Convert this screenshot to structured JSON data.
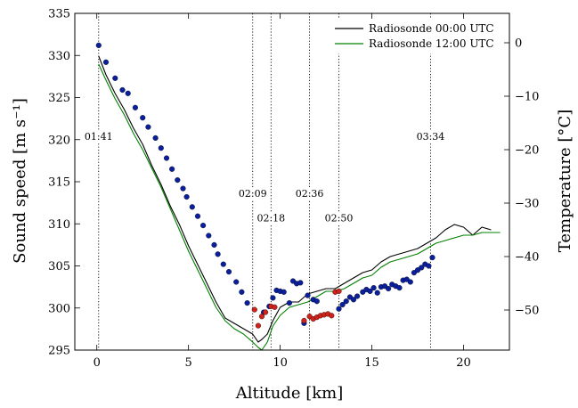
{
  "chart_data": {
    "type": "scatter",
    "xlabel": "Altitude [km]",
    "ylabel": "Sound speed [m s⁻¹]",
    "y2label": "Temperature [°C]",
    "xlim": [
      -1.2,
      22.5
    ],
    "ylim": [
      295,
      335
    ],
    "y2lim": [
      -57.5,
      5.5
    ],
    "x_ticks": [
      0,
      5,
      10,
      15,
      20
    ],
    "y_ticks": [
      295,
      300,
      305,
      310,
      315,
      320,
      325,
      330,
      335
    ],
    "y2_ticks": [
      0,
      -10,
      -20,
      -30,
      -40,
      -50
    ],
    "grid": false,
    "legend": {
      "position": "top-right",
      "entries": [
        {
          "label": "Radiosonde 00:00 UTC",
          "color": "#000000"
        },
        {
          "label": "Radiosonde 12:00 UTC",
          "color": "#008000"
        }
      ]
    },
    "time_markers": [
      {
        "x": 0.1,
        "label": "01:41",
        "label_y": 320.0
      },
      {
        "x": 8.5,
        "label": "02:09",
        "label_y": 313.2
      },
      {
        "x": 9.5,
        "label": "02:18",
        "label_y": 310.3
      },
      {
        "x": 11.6,
        "label": "02:36",
        "label_y": 313.2
      },
      {
        "x": 13.2,
        "label": "02:50",
        "label_y": 310.3
      },
      {
        "x": 18.2,
        "label": "03:34",
        "label_y": 320.0
      }
    ],
    "series": [
      {
        "name": "Radiosonde 00:00 UTC",
        "kind": "line",
        "axis": "temperature",
        "color": "#000000",
        "x": [
          0.1,
          0.5,
          1,
          1.5,
          2,
          2.5,
          3,
          3.5,
          4,
          4.5,
          5,
          5.5,
          6,
          6.5,
          7,
          7.5,
          8,
          8.5,
          8.8,
          9,
          9.3,
          9.6,
          10,
          10.5,
          11,
          11.5,
          12,
          12.5,
          13,
          13.5,
          14,
          14.5,
          15,
          15.5,
          16,
          16.5,
          17,
          17.5,
          18,
          18.5,
          19,
          19.5,
          20,
          20.5,
          21,
          21.5
        ],
        "y": [
          -2.5,
          -6,
          -9.5,
          -12.5,
          -16,
          -19,
          -23,
          -26.5,
          -30.5,
          -34,
          -38,
          -41.5,
          -45,
          -48.5,
          -51.5,
          -52.5,
          -53.5,
          -54.5,
          -56,
          -55.5,
          -54.5,
          -52,
          -49.5,
          -48.5,
          -48.5,
          -47,
          -46.5,
          -46,
          -46,
          -45,
          -44,
          -43,
          -42.5,
          -41,
          -40,
          -39.5,
          -39,
          -38.5,
          -37.5,
          -36.5,
          -35,
          -34,
          -34.5,
          -36,
          -34.5,
          -35
        ]
      },
      {
        "name": "Radiosonde 12:00 UTC",
        "kind": "line",
        "axis": "temperature",
        "color": "#008000",
        "x": [
          0.1,
          0.5,
          1,
          1.5,
          2,
          2.5,
          3,
          3.5,
          4,
          4.5,
          5,
          5.5,
          6,
          6.5,
          7,
          7.5,
          8,
          8.5,
          8.8,
          9,
          9.3,
          9.6,
          10,
          10.5,
          11,
          11.5,
          12,
          12.5,
          13,
          13.5,
          14,
          14.5,
          15,
          15.5,
          16,
          16.5,
          17,
          17.5,
          18,
          18.5,
          19,
          19.5,
          20,
          20.5,
          21,
          21.5,
          22
        ],
        "y": [
          -4,
          -7,
          -10.5,
          -13.5,
          -17,
          -20,
          -23.5,
          -27,
          -31,
          -35,
          -39,
          -42.5,
          -46,
          -49.5,
          -52,
          -53.5,
          -54.5,
          -56,
          -57,
          -57.5,
          -56,
          -53,
          -51,
          -49.5,
          -49,
          -48.5,
          -47.5,
          -46.5,
          -46.5,
          -46,
          -45,
          -44,
          -43.5,
          -42,
          -41,
          -40.5,
          -40,
          -39.5,
          -38.5,
          -37.5,
          -37,
          -36.5,
          -36,
          -36,
          -35.5,
          -35.5,
          -35.5
        ]
      },
      {
        "name": "",
        "kind": "scatter",
        "axis": "sound_speed",
        "color": "#0a1f9c",
        "x": [
          0.1,
          0.5,
          1,
          1.4,
          1.7,
          2.1,
          2.5,
          2.8,
          3.2,
          3.5,
          3.8,
          4.1,
          4.4,
          4.7,
          4.9,
          5.2,
          5.5,
          5.8,
          6.1,
          6.4,
          6.6,
          6.9,
          7.2,
          7.6,
          7.9,
          8.2,
          9.1,
          9.4,
          9.6,
          9.8,
          10.0,
          10.2,
          10.5,
          10.7,
          10.9,
          11.1,
          11.3,
          11.5,
          11.8,
          12.0,
          13.2,
          13.4,
          13.6,
          13.8,
          14.0,
          14.2,
          14.5,
          14.7,
          14.9,
          15.1,
          15.3,
          15.5,
          15.7,
          15.9,
          16.1,
          16.3,
          16.5,
          16.7,
          16.9,
          17.1,
          17.3,
          17.5,
          17.7,
          17.9,
          18.1,
          18.3
        ],
        "y": [
          331.2,
          329.2,
          327.3,
          325.9,
          325.5,
          323.8,
          322.6,
          321.5,
          320.2,
          319.0,
          317.8,
          316.5,
          315.2,
          314.2,
          313.2,
          312.0,
          310.9,
          309.8,
          308.6,
          307.5,
          306.4,
          305.2,
          304.3,
          303.1,
          301.9,
          300.6,
          299.5,
          300.2,
          301.2,
          302.1,
          302.0,
          301.9,
          300.6,
          303.2,
          302.9,
          303.0,
          298.2,
          301.5,
          301.0,
          300.8,
          299.9,
          300.4,
          300.8,
          301.3,
          301.0,
          301.4,
          301.9,
          302.2,
          302.0,
          302.4,
          301.8,
          302.5,
          302.6,
          302.3,
          302.8,
          302.6,
          302.4,
          303.3,
          303.4,
          303.1,
          304.2,
          304.5,
          304.8,
          305.2,
          305.0,
          306.0
        ]
      },
      {
        "name": "",
        "kind": "scatter",
        "axis": "sound_speed",
        "color": "#d0231c",
        "x": [
          8.6,
          8.8,
          9.0,
          9.2,
          9.5,
          9.7,
          11.3,
          11.6,
          11.8,
          12.0,
          12.2,
          12.4,
          12.6,
          12.8,
          13.0,
          13.2
        ],
        "y": [
          299.8,
          297.9,
          299.0,
          299.5,
          300.2,
          300.1,
          298.5,
          299.0,
          298.7,
          298.9,
          299.1,
          299.2,
          299.3,
          299.1,
          301.9,
          302.0
        ]
      }
    ]
  }
}
